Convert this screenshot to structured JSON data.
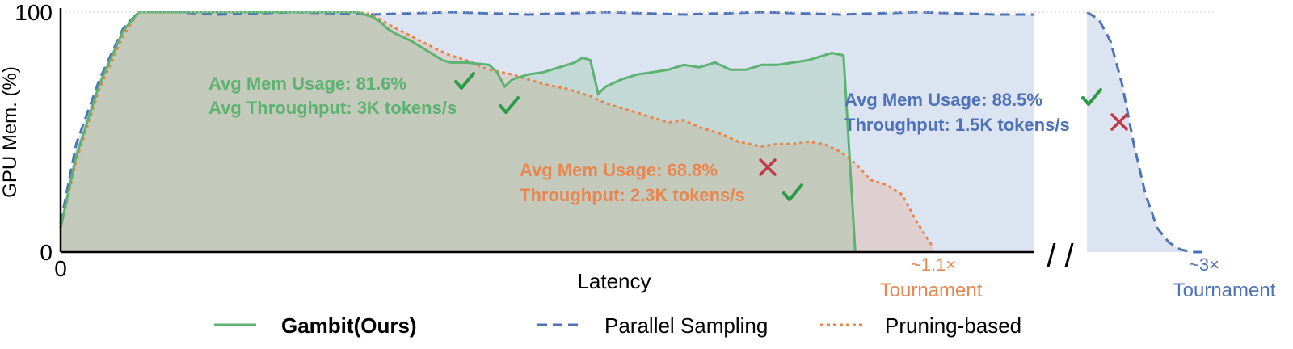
{
  "chart_data": {
    "type": "area",
    "ylabel": "GPU Mem. (%)",
    "xlabel": "Latency",
    "ylim": [
      0,
      100
    ],
    "xlim": [
      0,
      1.25
    ],
    "y_ticks": [
      "0",
      "100"
    ],
    "x_ticks": [
      "0"
    ],
    "break_label": "/ /",
    "x_markers": [
      {
        "value_label": "~1.1×",
        "name_label": "Tournament",
        "color": "#e8864f"
      },
      {
        "value_label": "~3×",
        "name_label": "Tournament",
        "color": "#4e72b8"
      }
    ],
    "colors": {
      "gambit": "#5cb270",
      "parallel": "#4e72b8",
      "pruning": "#e8864f",
      "check": "#2e9a48",
      "cross": "#c23a48"
    },
    "series": [
      {
        "name": "Gambit(Ours)",
        "style": "solid",
        "x": [
          0,
          0.02,
          0.05,
          0.08,
          0.1,
          0.13,
          0.2,
          0.3,
          0.38,
          0.4,
          0.41,
          0.42,
          0.43,
          0.45,
          0.47,
          0.49,
          0.5,
          0.52,
          0.55,
          0.56,
          0.57,
          0.58,
          0.6,
          0.62,
          0.64,
          0.66,
          0.67,
          0.68,
          0.69,
          0.7,
          0.72,
          0.74,
          0.76,
          0.78,
          0.8,
          0.82,
          0.84,
          0.86,
          0.88,
          0.9,
          0.92,
          0.94,
          0.96,
          0.98,
          0.99,
          1.005,
          1.02
        ],
        "y": [
          10,
          40,
          70,
          92,
          100,
          100,
          100,
          100,
          100,
          98,
          96,
          93,
          91,
          88,
          84,
          80,
          79,
          79,
          78,
          75,
          69,
          72,
          74,
          75,
          77,
          79,
          81,
          80,
          66,
          69,
          72,
          74,
          75,
          76,
          78,
          77,
          79,
          76,
          76,
          78,
          78,
          79,
          80,
          82,
          83,
          82,
          0
        ]
      },
      {
        "name": "Parallel Sampling",
        "style": "dashed",
        "x": [
          0,
          0.02,
          0.05,
          0.08,
          0.1,
          0.15,
          0.2,
          0.3,
          0.4,
          0.5,
          0.6,
          0.7,
          0.8,
          0.9,
          1.0,
          1.1,
          1.2,
          1.25
        ],
        "y": [
          12,
          45,
          72,
          93,
          100,
          100,
          99,
          100,
          99,
          100,
          99,
          100,
          99,
          100,
          99,
          100,
          99,
          99
        ],
        "tail_x": [
          0,
          0.1,
          0.2,
          0.3,
          0.4,
          0.5,
          0.6,
          0.7,
          0.8,
          0.9,
          1.0
        ],
        "tail_y": [
          100,
          97,
          88,
          70,
          45,
          24,
          10,
          4,
          1,
          0,
          0
        ]
      },
      {
        "name": "Pruning-based",
        "style": "dotted",
        "x": [
          0,
          0.02,
          0.05,
          0.08,
          0.1,
          0.15,
          0.2,
          0.3,
          0.35,
          0.38,
          0.4,
          0.42,
          0.45,
          0.48,
          0.5,
          0.52,
          0.55,
          0.58,
          0.6,
          0.62,
          0.65,
          0.68,
          0.7,
          0.72,
          0.75,
          0.78,
          0.8,
          0.82,
          0.85,
          0.87,
          0.9,
          0.92,
          0.94,
          0.96,
          0.98,
          1.0,
          1.02,
          1.04,
          1.06,
          1.08,
          1.1,
          1.12
        ],
        "y": [
          10,
          38,
          68,
          90,
          100,
          100,
          100,
          100,
          100,
          100,
          99,
          95,
          90,
          85,
          82,
          80,
          76,
          74,
          72,
          70,
          68,
          65,
          62,
          60,
          57,
          54,
          55,
          52,
          49,
          46,
          44,
          45,
          45,
          46,
          45,
          42,
          37,
          30,
          28,
          24,
          12,
          2
        ]
      }
    ],
    "annotations": [
      {
        "text": "Avg Mem Usage: 81.6%",
        "color": "#5cb270",
        "mark": "check"
      },
      {
        "text": "Avg Throughput: 3K tokens/s",
        "color": "#5cb270",
        "mark": "check"
      },
      {
        "text": "Avg Mem Usage: 68.8%",
        "color": "#e8864f",
        "mark": "cross"
      },
      {
        "text": "Throughput: 2.3K tokens/s",
        "color": "#e8864f",
        "mark": "check"
      },
      {
        "text": "Avg Mem Usage: 88.5%",
        "color": "#4e72b8",
        "mark": "check"
      },
      {
        "text": "Throughput: 1.5K tokens/s",
        "color": "#4e72b8",
        "mark": "cross"
      }
    ],
    "legend": [
      {
        "label": "Gambit(Ours)",
        "bold": true
      },
      {
        "label": "Parallel Sampling",
        "bold": false
      },
      {
        "label": "Pruning-based",
        "bold": false
      }
    ]
  }
}
